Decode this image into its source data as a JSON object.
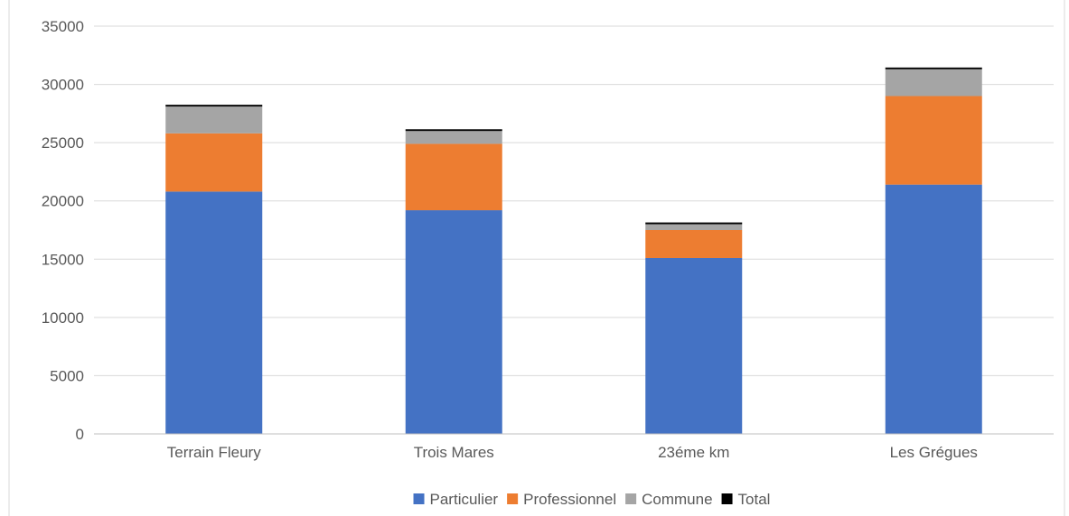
{
  "chart_data": {
    "type": "bar",
    "stacked": true,
    "categories": [
      "Terrain Fleury",
      "Trois Mares",
      "23éme km",
      "Les Grégues"
    ],
    "series": [
      {
        "name": "Particulier",
        "color": "#4472C4",
        "values": [
          20800,
          19200,
          15100,
          21400
        ]
      },
      {
        "name": "Professionnel",
        "color": "#ED7D31",
        "values": [
          5000,
          5700,
          2400,
          7600
        ]
      },
      {
        "name": "Commune",
        "color": "#A5A5A5",
        "values": [
          2300,
          1100,
          500,
          2300
        ]
      },
      {
        "name": "Total",
        "color": "#000000",
        "values": [
          150,
          150,
          150,
          150
        ]
      }
    ],
    "ylim": [
      0,
      35000
    ],
    "yticks": [
      "0",
      "5000",
      "10000",
      "15000",
      "20000",
      "25000",
      "30000",
      "35000"
    ],
    "grid": true,
    "legend_position": "bottom"
  }
}
